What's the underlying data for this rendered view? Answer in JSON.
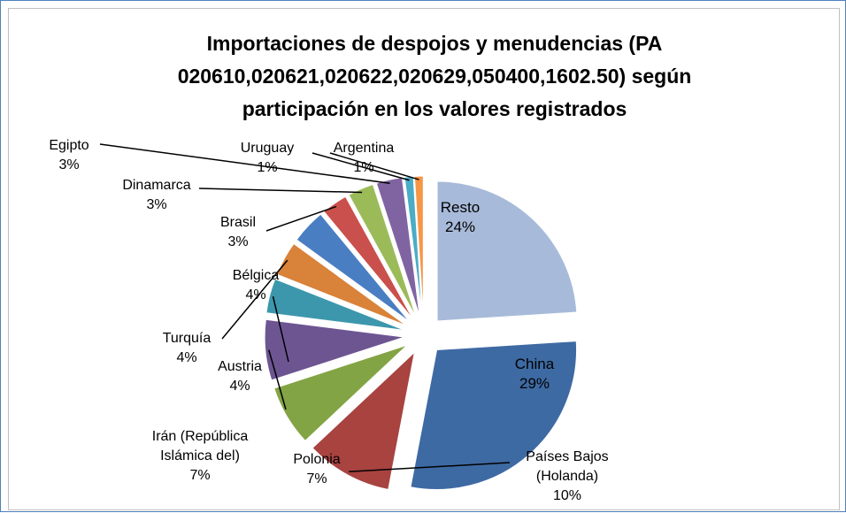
{
  "chart_data": {
    "type": "pie",
    "title": "Importaciones de despojos y menudencias (PA 020610,020621,020622,020629,050400,1602.50) según participación en los valores registrados",
    "categories": [
      "Resto",
      "China",
      "Países Bajos (Holanda)",
      "Polonia",
      "Irán (República Islámica del)",
      "Austria",
      "Turquía",
      "Bélgica",
      "Brasil",
      "Dinamarca",
      "Egipto",
      "Uruguay",
      "Argentina"
    ],
    "values": [
      24,
      29,
      10,
      7,
      7,
      4,
      4,
      4,
      3,
      3,
      3,
      1,
      1
    ],
    "value_labels": [
      "24%",
      "29%",
      "10%",
      "7%",
      "7%",
      "4%",
      "4%",
      "4%",
      "3%",
      "3%",
      "3%",
      "1%",
      "1%"
    ],
    "colors": [
      "#a8bad9",
      "#3e6aa3",
      "#a84340",
      "#83a444",
      "#6d5592",
      "#3c97ad",
      "#d9823a",
      "#4a7ec2",
      "#c9504c",
      "#9bbb59",
      "#8064a2",
      "#4bacc6",
      "#f79646"
    ]
  }
}
